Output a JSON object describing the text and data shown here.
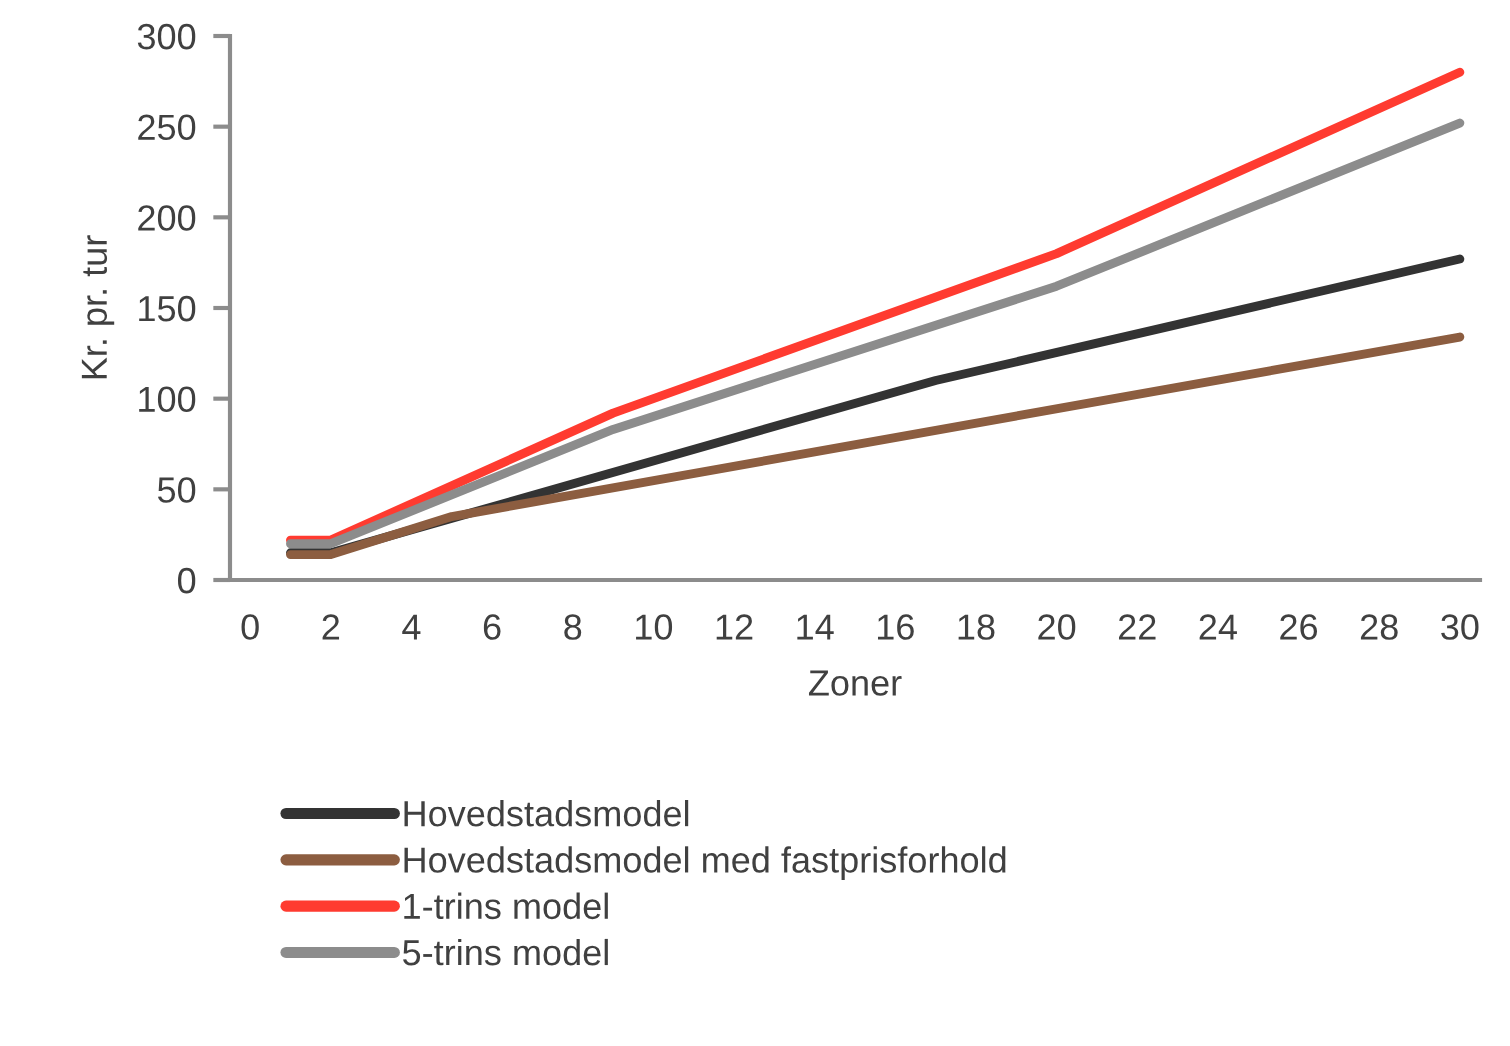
{
  "chart_data": {
    "type": "line",
    "xlabel": "Zoner",
    "ylabel": "Kr. pr. tur",
    "xlim": [
      -0.5,
      30.5
    ],
    "xticks": [
      0,
      2,
      4,
      6,
      8,
      10,
      12,
      14,
      16,
      18,
      20,
      22,
      24,
      26,
      28,
      30
    ],
    "ylim": [
      0,
      300
    ],
    "yticks": [
      0,
      50,
      100,
      150,
      200,
      250,
      300
    ],
    "grid": false,
    "legend": "bottom",
    "marker": "none",
    "line_style": "solid",
    "series": [
      {
        "name": "Hovedstadsmodel",
        "color": "#333333",
        "x": [
          1,
          2,
          17,
          30
        ],
        "values": [
          15,
          15,
          110,
          177
        ]
      },
      {
        "name": "Hovedstadsmodel med fastprisforhold",
        "color": "#8c5d40",
        "x": [
          1,
          2,
          5,
          30
        ],
        "values": [
          14,
          14,
          35,
          134
        ]
      },
      {
        "name": "1-trins model",
        "color": "#ff3b30",
        "x": [
          1,
          2,
          9,
          20,
          30
        ],
        "values": [
          22,
          22,
          92,
          180,
          280
        ]
      },
      {
        "name": "5-trins model",
        "color": "#8c8c8c",
        "x": [
          1,
          2,
          9,
          20,
          30
        ],
        "values": [
          20,
          20,
          83,
          162,
          252
        ]
      }
    ]
  }
}
